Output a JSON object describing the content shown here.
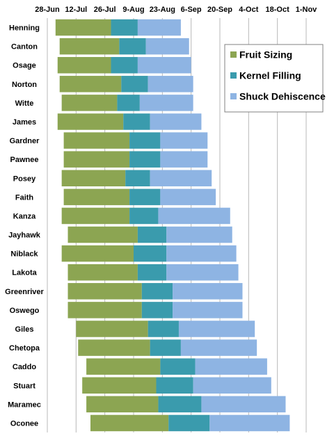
{
  "chart_data": {
    "type": "bar",
    "orientation": "horizontal",
    "stacked": true,
    "title": "",
    "xlabel": "",
    "ylabel": "",
    "x_ticks": [
      "28-Jun",
      "12-Jul",
      "26-Jul",
      "9-Aug",
      "23-Aug",
      "6-Sep",
      "20-Sep",
      "4-Oct",
      "18-Oct",
      "1-Nov"
    ],
    "x_axis_position": "top",
    "grid": "vertical",
    "legend_position": "right",
    "categories": [
      "Henning",
      "Canton",
      "Osage",
      "Norton",
      "Witte",
      "James",
      "Gardner",
      "Pawnee",
      "Posey",
      "Faith",
      "Kanza",
      "Jayhawk",
      "Niblack",
      "Lakota",
      "Greenriver",
      "Oswego",
      "Giles",
      "Chetopa",
      "Caddo",
      "Stuart",
      "Maramec",
      "Oconee"
    ],
    "start_dates": [
      "2-Jul",
      "4-Jul",
      "3-Jul",
      "4-Jul",
      "5-Jul",
      "3-Jul",
      "6-Jul",
      "6-Jul",
      "5-Jul",
      "6-Jul",
      "5-Jul",
      "8-Jul",
      "5-Jul",
      "8-Jul",
      "8-Jul",
      "8-Jul",
      "12-Jul",
      "13-Jul",
      "17-Jul",
      "15-Jul",
      "17-Jul",
      "19-Jul"
    ],
    "series": [
      {
        "name": "Fruit Sizing",
        "color": "#8ca552",
        "end_dates": [
          "29-Jul",
          "2-Aug",
          "29-Jul",
          "3-Aug",
          "1-Aug",
          "4-Aug",
          "7-Aug",
          "7-Aug",
          "5-Aug",
          "7-Aug",
          "7-Aug",
          "11-Aug",
          "9-Aug",
          "11-Aug",
          "13-Aug",
          "13-Aug",
          "16-Aug",
          "17-Aug",
          "22-Aug",
          "20-Aug",
          "21-Aug",
          "26-Aug"
        ]
      },
      {
        "name": "Kernel Filling",
        "color": "#3a9bad",
        "end_dates": [
          "11-Aug",
          "15-Aug",
          "11-Aug",
          "16-Aug",
          "12-Aug",
          "17-Aug",
          "22-Aug",
          "22-Aug",
          "17-Aug",
          "22-Aug",
          "21-Aug",
          "25-Aug",
          "25-Aug",
          "25-Aug",
          "28-Aug",
          "28-Aug",
          "31-Aug",
          "1-Sep",
          "8-Sep",
          "7-Sep",
          "11-Sep",
          "15-Sep"
        ]
      },
      {
        "name": "Shuck Dehiscence",
        "color": "#8eb4e3",
        "end_dates": [
          "1-Sep",
          "5-Sep",
          "6-Sep",
          "7-Sep",
          "7-Sep",
          "11-Sep",
          "14-Sep",
          "14-Sep",
          "16-Sep",
          "18-Sep",
          "25-Sep",
          "26-Sep",
          "28-Sep",
          "29-Sep",
          "1-Oct",
          "1-Oct",
          "7-Oct",
          "8-Oct",
          "13-Oct",
          "15-Oct",
          "22-Oct",
          "24-Oct"
        ]
      }
    ]
  }
}
